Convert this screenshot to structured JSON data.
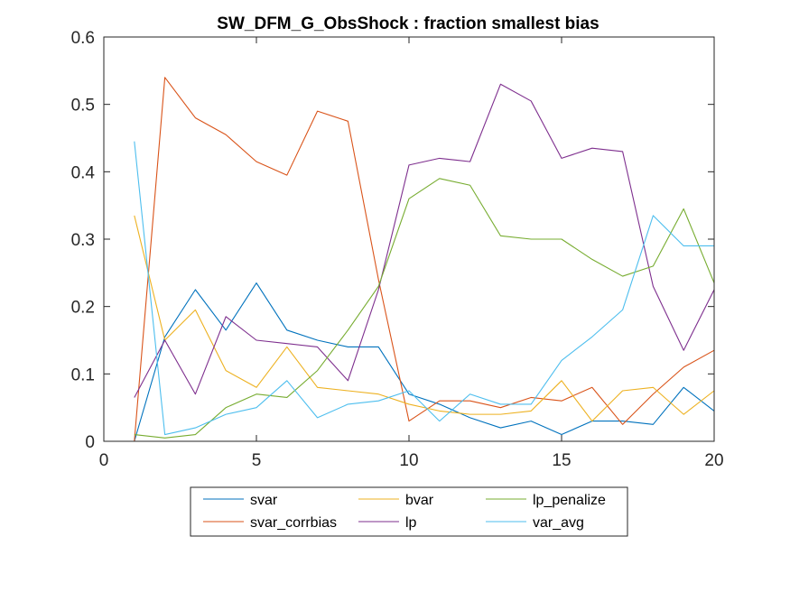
{
  "chart_data": {
    "type": "line",
    "title": "SW_DFM_G_ObsShock : fraction smallest bias",
    "xlabel": "",
    "ylabel": "",
    "xlim": [
      0,
      20
    ],
    "ylim": [
      0,
      0.6
    ],
    "xticks": [
      0,
      5,
      10,
      15,
      20
    ],
    "yticks": [
      0,
      0.1,
      0.2,
      0.3,
      0.4,
      0.5,
      0.6
    ],
    "xtick_labels": [
      "0",
      "5",
      "10",
      "15",
      "20"
    ],
    "ytick_labels": [
      "0",
      "0.1",
      "0.2",
      "0.3",
      "0.4",
      "0.5",
      "0.6"
    ],
    "grid": false,
    "legend_position": "bottom-outside",
    "x": [
      1,
      2,
      3,
      4,
      5,
      6,
      7,
      8,
      9,
      10,
      11,
      12,
      13,
      14,
      15,
      16,
      17,
      18,
      19,
      20
    ],
    "series": [
      {
        "name": "svar",
        "color": "#0072BD",
        "values": [
          0.0,
          0.155,
          0.225,
          0.165,
          0.235,
          0.165,
          0.15,
          0.14,
          0.14,
          0.07,
          0.055,
          0.035,
          0.02,
          0.03,
          0.01,
          0.03,
          0.03,
          0.025,
          0.08,
          0.045
        ]
      },
      {
        "name": "svar_corrbias",
        "color": "#D95319",
        "values": [
          0.0,
          0.54,
          0.48,
          0.455,
          0.415,
          0.395,
          0.49,
          0.475,
          0.24,
          0.03,
          0.06,
          0.06,
          0.05,
          0.065,
          0.06,
          0.08,
          0.025,
          0.07,
          0.11,
          0.135
        ]
      },
      {
        "name": "bvar",
        "color": "#EDB120",
        "values": [
          0.335,
          0.15,
          0.195,
          0.105,
          0.08,
          0.14,
          0.08,
          0.075,
          0.07,
          0.055,
          0.045,
          0.04,
          0.04,
          0.045,
          0.09,
          0.03,
          0.075,
          0.08,
          0.04,
          0.075
        ]
      },
      {
        "name": "lp",
        "color": "#7E2F8E",
        "values": [
          0.065,
          0.15,
          0.07,
          0.185,
          0.15,
          0.145,
          0.14,
          0.09,
          0.225,
          0.41,
          0.42,
          0.415,
          0.53,
          0.505,
          0.42,
          0.435,
          0.43,
          0.23,
          0.135,
          0.225
        ]
      },
      {
        "name": "lp_penalize",
        "color": "#77AC30",
        "values": [
          0.01,
          0.005,
          0.01,
          0.05,
          0.07,
          0.065,
          0.105,
          0.165,
          0.23,
          0.36,
          0.39,
          0.38,
          0.305,
          0.3,
          0.3,
          0.27,
          0.245,
          0.26,
          0.345,
          0.235
        ]
      },
      {
        "name": "var_avg",
        "color": "#4DBEEE",
        "values": [
          0.445,
          0.01,
          0.02,
          0.04,
          0.05,
          0.09,
          0.035,
          0.055,
          0.06,
          0.075,
          0.03,
          0.07,
          0.055,
          0.055,
          0.12,
          0.155,
          0.195,
          0.335,
          0.29,
          0.29
        ]
      }
    ],
    "legend_layout": {
      "columns": 3,
      "order": [
        "svar",
        "bvar",
        "lp_penalize",
        "svar_corrbias",
        "lp",
        "var_avg"
      ]
    }
  }
}
